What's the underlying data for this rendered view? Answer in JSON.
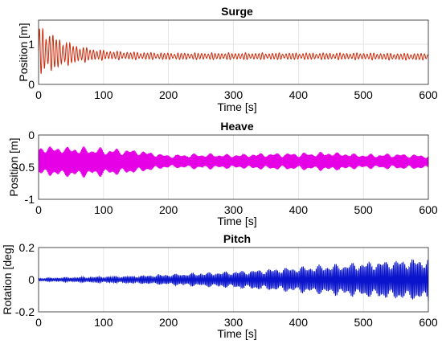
{
  "chart_data": [
    {
      "type": "line",
      "title": "Surge",
      "xlabel": "Time [s]",
      "ylabel": "Position [m]",
      "xlim": [
        0,
        600
      ],
      "ylim": [
        0,
        1.6
      ],
      "xticks": [
        0,
        100,
        200,
        300,
        400,
        500,
        600
      ],
      "yticks": [
        0,
        1
      ],
      "grid": true,
      "line_color": "#cc2a0a",
      "series": [
        {
          "x": [
            0,
            10,
            20,
            30,
            40,
            50,
            60,
            70,
            80,
            90,
            100,
            125,
            150,
            200,
            250,
            300,
            350,
            400,
            450,
            500,
            550,
            600
          ],
          "mean": [
            0.85,
            0.82,
            0.8,
            0.78,
            0.77,
            0.76,
            0.75,
            0.74,
            0.74,
            0.73,
            0.73,
            0.72,
            0.71,
            0.7,
            0.7,
            0.7,
            0.7,
            0.7,
            0.7,
            0.7,
            0.69,
            0.69
          ],
          "amp": [
            0.72,
            0.6,
            0.5,
            0.42,
            0.35,
            0.28,
            0.24,
            0.2,
            0.17,
            0.15,
            0.13,
            0.11,
            0.1,
            0.09,
            0.09,
            0.09,
            0.09,
            0.09,
            0.09,
            0.09,
            0.09,
            0.09
          ]
        }
      ]
    },
    {
      "type": "line",
      "title": "Heave",
      "xlabel": "Time [s]",
      "ylabel": "Position [m]",
      "xlim": [
        0,
        600
      ],
      "ylim": [
        -1,
        0
      ],
      "xticks": [
        0,
        100,
        200,
        300,
        400,
        500,
        600
      ],
      "yticks": [
        -1,
        -0.5,
        0
      ],
      "grid": true,
      "line_color": "#e600e6",
      "series": [
        {
          "x": [
            0,
            50,
            100,
            150,
            200,
            250,
            300,
            350,
            400,
            450,
            500,
            550,
            600
          ],
          "mean": [
            -0.4,
            -0.42,
            -0.42,
            -0.41,
            -0.41,
            -0.41,
            -0.41,
            -0.41,
            -0.41,
            -0.41,
            -0.41,
            -0.41,
            -0.42
          ],
          "amp": [
            0.25,
            0.26,
            0.23,
            0.2,
            0.11,
            0.13,
            0.12,
            0.14,
            0.14,
            0.16,
            0.12,
            0.13,
            0.12
          ]
        }
      ]
    },
    {
      "type": "line",
      "title": "Pitch",
      "xlabel": "Time [s]",
      "ylabel": "Rotation [deg]",
      "xlim": [
        0,
        600
      ],
      "ylim": [
        -0.2,
        0.2
      ],
      "xticks": [
        0,
        100,
        200,
        300,
        400,
        500,
        600
      ],
      "yticks": [
        -0.2,
        0,
        0.2
      ],
      "grid": true,
      "line_color": "#0a14cc",
      "series": [
        {
          "x": [
            0,
            50,
            100,
            150,
            200,
            250,
            300,
            350,
            400,
            450,
            500,
            550,
            600
          ],
          "mean": [
            0,
            0,
            0,
            0,
            0,
            0,
            0,
            0,
            0,
            0,
            0,
            0,
            0
          ],
          "amp": [
            0.01,
            0.015,
            0.02,
            0.025,
            0.035,
            0.045,
            0.055,
            0.07,
            0.085,
            0.1,
            0.115,
            0.13,
            0.14
          ]
        }
      ]
    }
  ]
}
